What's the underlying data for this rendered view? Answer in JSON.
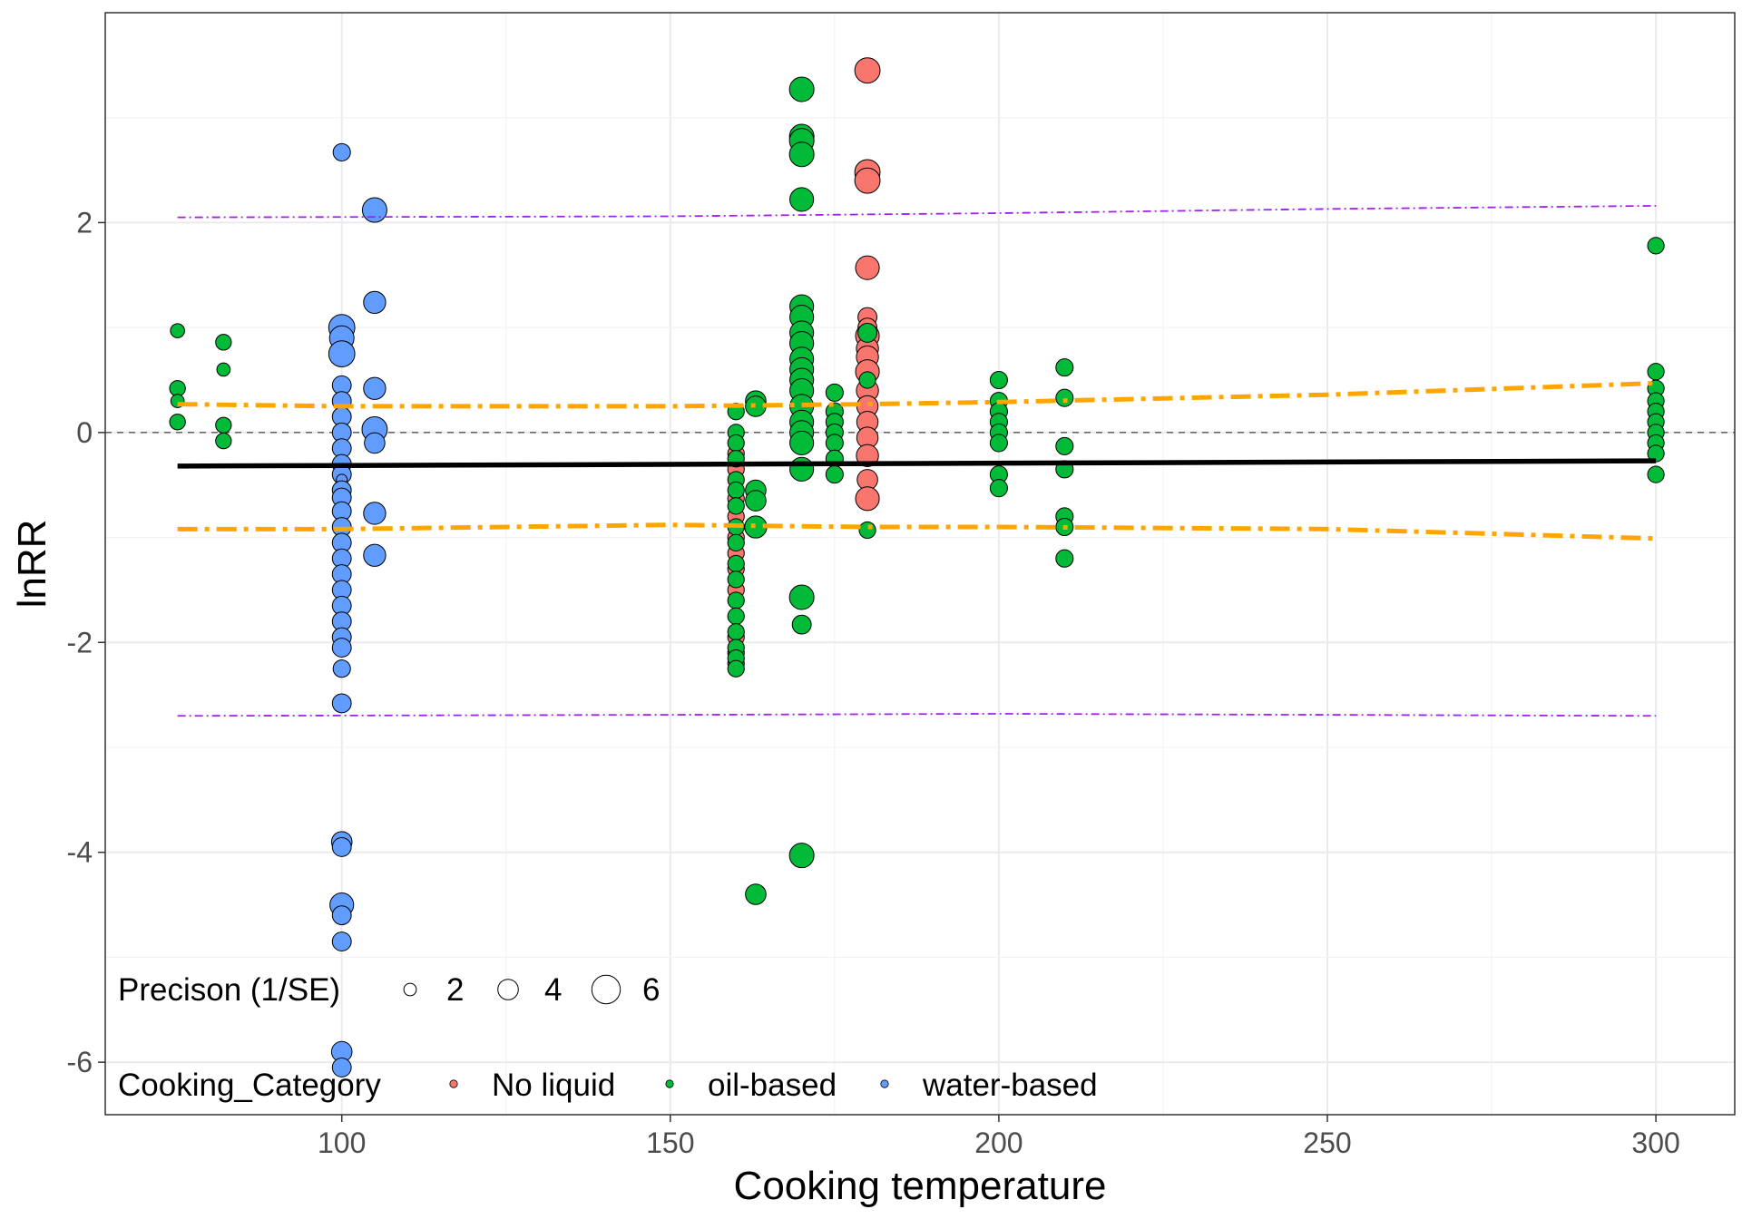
{
  "chart_data": {
    "type": "scatter",
    "xlabel": "Cooking temperature",
    "ylabel": "lnRR",
    "xlim": [
      64,
      312
    ],
    "ylim": [
      -6.5,
      4.0
    ],
    "x_ticks": [
      100,
      150,
      200,
      250,
      300
    ],
    "x_tick_labels": [
      "100",
      "150",
      "200",
      "250",
      "300"
    ],
    "y_ticks": [
      -6,
      -4,
      -2,
      0,
      2
    ],
    "y_tick_labels": [
      "-6",
      "-4",
      "-2",
      "0",
      "2"
    ],
    "grid": true,
    "reference_line_y": 0,
    "colors": {
      "No liquid": "#F8766D",
      "oil-based": "#00BA38",
      "water-based": "#619CFF",
      "fit": "#000000",
      "ci": "#FFA500",
      "pi": "#A020F0"
    },
    "fit_line": [
      [
        75,
        -0.32
      ],
      [
        300,
        -0.27
      ]
    ],
    "confidence_upper": [
      [
        75,
        0.27
      ],
      [
        100,
        0.25
      ],
      [
        150,
        0.25
      ],
      [
        180,
        0.27
      ],
      [
        200,
        0.29
      ],
      [
        250,
        0.36
      ],
      [
        300,
        0.47
      ]
    ],
    "confidence_lower": [
      [
        75,
        -0.92
      ],
      [
        100,
        -0.92
      ],
      [
        150,
        -0.88
      ],
      [
        180,
        -0.9
      ],
      [
        200,
        -0.9
      ],
      [
        250,
        -0.92
      ],
      [
        300,
        -1.01
      ]
    ],
    "prediction_upper": [
      [
        75,
        2.05
      ],
      [
        150,
        2.06
      ],
      [
        200,
        2.09
      ],
      [
        250,
        2.13
      ],
      [
        300,
        2.16
      ]
    ],
    "prediction_lower": [
      [
        75,
        -2.7
      ],
      [
        150,
        -2.69
      ],
      [
        200,
        -2.68
      ],
      [
        250,
        -2.69
      ],
      [
        300,
        -2.7
      ]
    ],
    "size_legend": {
      "title": "Precison (1/SE)",
      "values": [
        2,
        4,
        6
      ],
      "labels": [
        "2",
        "4",
        "6"
      ]
    },
    "color_legend": {
      "title": "Cooking_Category",
      "labels": [
        "No liquid",
        "oil-based",
        "water-based"
      ]
    },
    "series": [
      {
        "name": "No liquid",
        "points": [
          [
            180,
            3.45,
            5.2
          ],
          [
            180,
            2.48,
            5.2
          ],
          [
            180,
            2.4,
            5.2
          ],
          [
            180,
            1.57,
            4.8
          ],
          [
            180,
            1.1,
            3.6
          ],
          [
            180,
            1.0,
            3.6
          ],
          [
            180,
            0.92,
            4.8
          ],
          [
            180,
            0.8,
            4.4
          ],
          [
            180,
            0.72,
            4.4
          ],
          [
            180,
            0.58,
            4.8
          ],
          [
            180,
            0.4,
            4.4
          ],
          [
            180,
            0.25,
            4.2
          ],
          [
            180,
            0.1,
            4.2
          ],
          [
            180,
            -0.05,
            4.2
          ],
          [
            180,
            -0.22,
            4.4
          ],
          [
            180,
            -0.45,
            4.0
          ],
          [
            180,
            -0.63,
            4.8
          ],
          [
            160,
            -0.2,
            3.0
          ],
          [
            160,
            -0.35,
            3.0
          ],
          [
            160,
            -0.63,
            3.0
          ],
          [
            160,
            -0.8,
            3.0
          ],
          [
            160,
            -1.0,
            3.0
          ],
          [
            160,
            -1.15,
            3.0
          ],
          [
            160,
            -1.3,
            3.0
          ],
          [
            160,
            -1.5,
            3.0
          ],
          [
            160,
            -1.95,
            3.0
          ],
          [
            160,
            -2.1,
            3.0
          ],
          [
            160,
            -2.2,
            3.0
          ]
        ]
      },
      {
        "name": "oil-based",
        "points": [
          [
            75,
            0.97,
            2.4
          ],
          [
            75,
            0.42,
            2.8
          ],
          [
            75,
            0.3,
            2.2
          ],
          [
            75,
            0.1,
            2.8
          ],
          [
            82,
            0.86,
            2.8
          ],
          [
            82,
            0.6,
            2.2
          ],
          [
            82,
            0.07,
            2.8
          ],
          [
            82,
            -0.08,
            2.8
          ],
          [
            160,
            0.2,
            3.0
          ],
          [
            160,
            0.0,
            3.0
          ],
          [
            160,
            -0.1,
            3.0
          ],
          [
            160,
            -0.25,
            3.0
          ],
          [
            160,
            -0.45,
            3.0
          ],
          [
            160,
            -0.55,
            3.0
          ],
          [
            160,
            -0.7,
            3.0
          ],
          [
            160,
            -0.9,
            3.0
          ],
          [
            160,
            -1.05,
            3.0
          ],
          [
            160,
            -1.25,
            3.0
          ],
          [
            160,
            -1.4,
            3.0
          ],
          [
            160,
            -1.6,
            3.0
          ],
          [
            160,
            -1.75,
            3.0
          ],
          [
            160,
            -1.9,
            3.0
          ],
          [
            160,
            -2.05,
            3.0
          ],
          [
            160,
            -2.15,
            3.0
          ],
          [
            160,
            -2.25,
            3.0
          ],
          [
            163,
            0.3,
            4.0
          ],
          [
            163,
            0.25,
            4.0
          ],
          [
            163,
            -0.55,
            4.0
          ],
          [
            163,
            -0.65,
            4.0
          ],
          [
            163,
            -0.9,
            4.4
          ],
          [
            163,
            -4.4,
            4.0
          ],
          [
            170,
            3.27,
            5.0
          ],
          [
            170,
            2.82,
            5.0
          ],
          [
            170,
            2.78,
            5.0
          ],
          [
            170,
            2.65,
            5.0
          ],
          [
            170,
            2.22,
            4.8
          ],
          [
            170,
            1.2,
            4.8
          ],
          [
            170,
            1.1,
            4.8
          ],
          [
            170,
            0.95,
            4.8
          ],
          [
            170,
            0.85,
            4.8
          ],
          [
            170,
            0.7,
            4.8
          ],
          [
            170,
            0.6,
            4.8
          ],
          [
            170,
            0.5,
            4.8
          ],
          [
            170,
            0.4,
            4.8
          ],
          [
            170,
            0.25,
            4.8
          ],
          [
            170,
            0.1,
            4.8
          ],
          [
            170,
            0.0,
            4.8
          ],
          [
            170,
            -0.1,
            4.8
          ],
          [
            170,
            -0.35,
            4.8
          ],
          [
            170,
            -1.57,
            5.0
          ],
          [
            170,
            -1.83,
            3.6
          ],
          [
            170,
            -4.03,
            5.0
          ],
          [
            175,
            0.38,
            3.2
          ],
          [
            175,
            0.2,
            3.2
          ],
          [
            175,
            0.1,
            3.2
          ],
          [
            175,
            0.0,
            3.2
          ],
          [
            175,
            -0.1,
            3.2
          ],
          [
            175,
            -0.25,
            3.2
          ],
          [
            175,
            -0.4,
            3.2
          ],
          [
            180,
            0.95,
            3.6
          ],
          [
            180,
            0.5,
            3.0
          ],
          [
            180,
            -0.93,
            3.0
          ],
          [
            200,
            0.5,
            3.2
          ],
          [
            200,
            0.3,
            3.2
          ],
          [
            200,
            0.2,
            3.2
          ],
          [
            200,
            0.1,
            3.2
          ],
          [
            200,
            0.0,
            3.2
          ],
          [
            200,
            -0.1,
            3.2
          ],
          [
            200,
            -0.4,
            3.2
          ],
          [
            200,
            -0.53,
            3.2
          ],
          [
            210,
            0.62,
            3.2
          ],
          [
            210,
            0.33,
            3.2
          ],
          [
            210,
            -0.13,
            3.2
          ],
          [
            210,
            -0.35,
            3.2
          ],
          [
            210,
            -0.8,
            3.2
          ],
          [
            210,
            -0.9,
            3.2
          ],
          [
            210,
            -1.2,
            3.2
          ],
          [
            300,
            1.78,
            3.0
          ],
          [
            300,
            0.58,
            3.0
          ],
          [
            300,
            0.42,
            3.0
          ],
          [
            300,
            0.3,
            3.0
          ],
          [
            300,
            0.2,
            3.0
          ],
          [
            300,
            0.1,
            3.0
          ],
          [
            300,
            0.0,
            3.0
          ],
          [
            300,
            -0.1,
            3.0
          ],
          [
            300,
            -0.2,
            3.0
          ],
          [
            300,
            -0.4,
            3.0
          ]
        ]
      },
      {
        "name": "water-based",
        "points": [
          [
            100,
            2.67,
            3.2
          ],
          [
            100,
            1.0,
            5.4
          ],
          [
            100,
            0.9,
            5.0
          ],
          [
            100,
            0.75,
            5.4
          ],
          [
            100,
            0.45,
            3.6
          ],
          [
            100,
            0.3,
            3.6
          ],
          [
            100,
            0.15,
            3.6
          ],
          [
            100,
            0.0,
            3.6
          ],
          [
            100,
            -0.15,
            3.6
          ],
          [
            100,
            -0.3,
            3.6
          ],
          [
            100,
            -0.4,
            3.6
          ],
          [
            100,
            -0.45,
            1.6
          ],
          [
            100,
            -0.55,
            3.6
          ],
          [
            100,
            -0.62,
            3.6
          ],
          [
            100,
            -0.75,
            3.6
          ],
          [
            100,
            -0.9,
            3.6
          ],
          [
            100,
            -1.05,
            3.6
          ],
          [
            100,
            -1.2,
            3.6
          ],
          [
            100,
            -1.35,
            3.6
          ],
          [
            100,
            -1.5,
            3.6
          ],
          [
            100,
            -1.65,
            3.6
          ],
          [
            100,
            -1.8,
            3.6
          ],
          [
            100,
            -1.95,
            3.6
          ],
          [
            100,
            -2.05,
            3.6
          ],
          [
            100,
            -2.25,
            3.2
          ],
          [
            100,
            -2.58,
            3.6
          ],
          [
            100,
            -3.9,
            4.0
          ],
          [
            100,
            -3.95,
            3.6
          ],
          [
            100,
            -4.5,
            4.8
          ],
          [
            100,
            -4.6,
            3.6
          ],
          [
            100,
            -4.85,
            3.6
          ],
          [
            100,
            -5.9,
            4.0
          ],
          [
            100,
            -6.05,
            3.6
          ],
          [
            105,
            2.12,
            5.0
          ],
          [
            105,
            1.24,
            4.4
          ],
          [
            105,
            0.42,
            4.4
          ],
          [
            105,
            0.03,
            5.2
          ],
          [
            105,
            -0.1,
            4.0
          ],
          [
            105,
            -0.77,
            4.4
          ],
          [
            105,
            -1.17,
            4.4
          ]
        ]
      }
    ]
  }
}
